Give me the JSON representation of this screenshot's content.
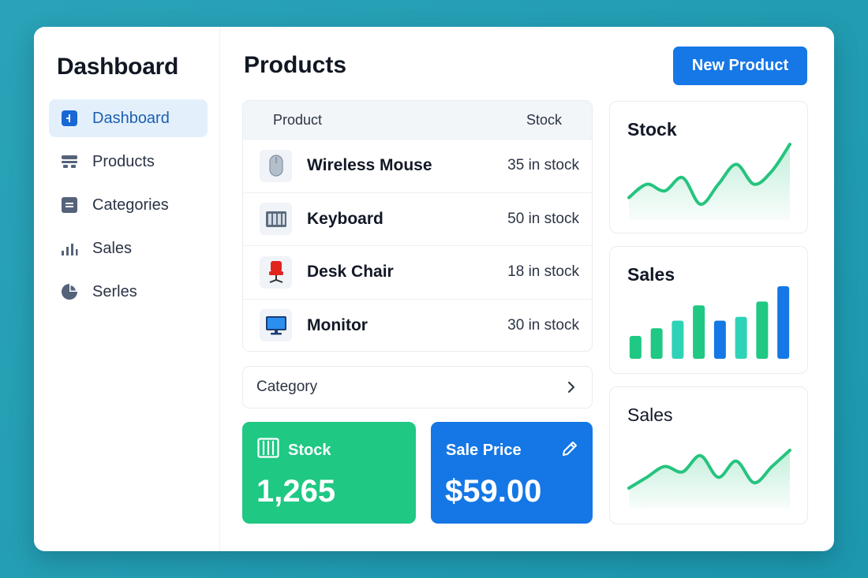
{
  "sidebar": {
    "title": "Dashboard",
    "items": [
      {
        "label": "Dashboard",
        "icon": "dashboard-icon",
        "active": true
      },
      {
        "label": "Products",
        "icon": "products-icon",
        "active": false
      },
      {
        "label": "Categories",
        "icon": "categories-icon",
        "active": false
      },
      {
        "label": "Sales",
        "icon": "sales-bars-icon",
        "active": false
      },
      {
        "label": "Serles",
        "icon": "pie-chart-icon",
        "active": false
      }
    ]
  },
  "header": {
    "title": "Products",
    "new_button_label": "New Product"
  },
  "table": {
    "columns": [
      "Product",
      "Stock"
    ],
    "rows": [
      {
        "name": "Wireless Mouse",
        "stock": "35 in stock",
        "icon": "mouse-icon"
      },
      {
        "name": "Keyboard",
        "stock": "50 in stock",
        "icon": "keyboard-icon"
      },
      {
        "name": "Desk Chair",
        "stock": "18 in stock",
        "icon": "chair-icon"
      },
      {
        "name": "Monitor",
        "stock": "30 in stock",
        "icon": "monitor-icon"
      }
    ]
  },
  "category": {
    "label": "Category"
  },
  "cards": {
    "stock": {
      "label": "Stock",
      "value": "1,265"
    },
    "sale": {
      "label": "Sale Price",
      "value": "$59.00"
    }
  },
  "panels": [
    {
      "title": "Stock"
    },
    {
      "title": "Sales"
    },
    {
      "title": "Sales"
    }
  ],
  "colors": {
    "accent_blue": "#1677e6",
    "green": "#1fc883",
    "teal": "#2ed3b7",
    "active_bg": "#e3f0fc"
  },
  "chart_data": [
    {
      "type": "area",
      "title": "Stock",
      "values": [
        2,
        4,
        3,
        5,
        1,
        4,
        7,
        4,
        6,
        10
      ],
      "color": "#26c47e"
    },
    {
      "type": "bar",
      "title": "Sales",
      "values": [
        3,
        4,
        5,
        7,
        5,
        5.5,
        7.5,
        9.5
      ],
      "colors": [
        "#1fc883",
        "#1fc883",
        "#2ed3b7",
        "#1fc883",
        "#1677e6",
        "#2ed3b7",
        "#1fc883",
        "#1677e6"
      ]
    },
    {
      "type": "area",
      "title": "Sales",
      "values": [
        1,
        3,
        5,
        4,
        7,
        3,
        6,
        2,
        5,
        8
      ],
      "color": "#26c47e"
    }
  ]
}
